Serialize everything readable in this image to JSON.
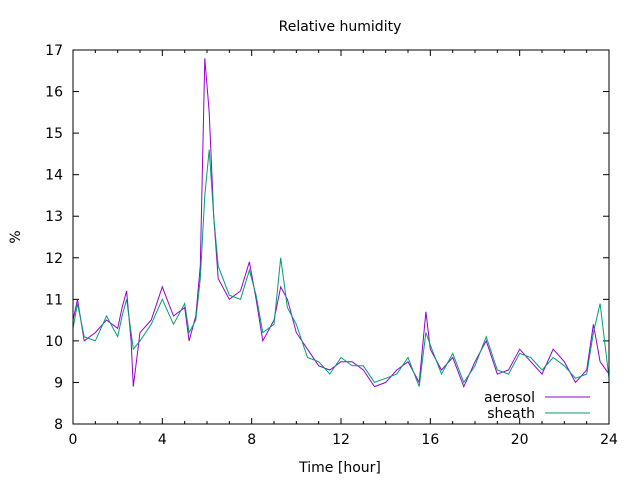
{
  "chart_data": {
    "type": "line",
    "title": "Relative humidity",
    "xlabel": "Time [hour]",
    "ylabel": "%",
    "xlim": [
      0,
      24
    ],
    "ylim": [
      8,
      17
    ],
    "xticks": [
      0,
      4,
      8,
      12,
      16,
      20,
      24
    ],
    "yticks": [
      8,
      9,
      10,
      11,
      12,
      13,
      14,
      15,
      16,
      17
    ],
    "legend_position": "bottom-right",
    "x": [
      0,
      0.2,
      0.5,
      1,
      1.5,
      2,
      2.2,
      2.4,
      2.6,
      2.7,
      3,
      3.5,
      4,
      4.5,
      5,
      5.2,
      5.5,
      5.7,
      5.9,
      6.1,
      6.3,
      6.5,
      7,
      7.5,
      7.9,
      8.2,
      8.5,
      9,
      9.3,
      9.6,
      10,
      10.5,
      11,
      11.5,
      12,
      12.5,
      13,
      13.5,
      14,
      14.5,
      15,
      15.5,
      15.8,
      16,
      16.5,
      17,
      17.5,
      18,
      18.5,
      19,
      19.5,
      20,
      20.5,
      21,
      21.5,
      22,
      22.5,
      23,
      23.3,
      23.6,
      24
    ],
    "series": [
      {
        "name": "aerosol",
        "color": "#9400d3",
        "values": [
          10.5,
          11.0,
          10.0,
          10.2,
          10.5,
          10.3,
          10.8,
          11.2,
          10.0,
          8.9,
          10.2,
          10.5,
          11.3,
          10.6,
          10.8,
          10.0,
          10.6,
          11.8,
          16.8,
          15.5,
          13.0,
          11.5,
          11.0,
          11.2,
          11.9,
          11.0,
          10.0,
          10.5,
          11.3,
          11.0,
          10.2,
          9.8,
          9.4,
          9.3,
          9.5,
          9.5,
          9.3,
          8.9,
          9.0,
          9.3,
          9.5,
          9.0,
          10.7,
          9.8,
          9.3,
          9.6,
          8.9,
          9.5,
          10.0,
          9.2,
          9.3,
          9.8,
          9.5,
          9.2,
          9.8,
          9.5,
          9.0,
          9.3,
          10.4,
          9.5,
          9.2
        ]
      },
      {
        "name": "sheath",
        "color": "#009e73",
        "values": [
          10.3,
          10.9,
          10.1,
          10.0,
          10.6,
          10.1,
          10.6,
          11.0,
          10.2,
          9.8,
          10.0,
          10.4,
          11.0,
          10.4,
          10.9,
          10.2,
          10.5,
          11.5,
          13.5,
          14.6,
          13.0,
          11.8,
          11.1,
          11.0,
          11.7,
          11.1,
          10.2,
          10.4,
          12.0,
          10.8,
          10.4,
          9.6,
          9.5,
          9.2,
          9.6,
          9.4,
          9.4,
          9.0,
          9.1,
          9.2,
          9.6,
          8.9,
          10.2,
          9.9,
          9.2,
          9.7,
          9.0,
          9.4,
          10.1,
          9.3,
          9.2,
          9.7,
          9.6,
          9.3,
          9.6,
          9.4,
          9.1,
          9.2,
          10.2,
          10.9,
          9.1
        ]
      }
    ]
  }
}
